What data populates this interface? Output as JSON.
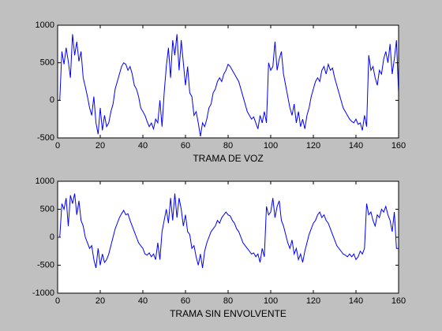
{
  "chart_data": [
    {
      "type": "line",
      "xlabel": "TRAMA DE VOZ",
      "x": [
        0,
        1,
        2,
        3,
        4,
        5,
        6,
        7,
        8,
        9,
        10,
        11,
        12,
        13,
        14,
        15,
        16,
        17,
        18,
        19,
        20,
        21,
        22,
        23,
        24,
        25,
        26,
        27,
        28,
        29,
        30,
        31,
        32,
        33,
        34,
        35,
        36,
        37,
        38,
        39,
        40,
        41,
        42,
        43,
        44,
        45,
        46,
        47,
        48,
        49,
        50,
        51,
        52,
        53,
        54,
        55,
        56,
        57,
        58,
        59,
        60,
        61,
        62,
        63,
        64,
        65,
        66,
        67,
        68,
        69,
        70,
        71,
        72,
        73,
        74,
        75,
        76,
        77,
        78,
        79,
        80,
        81,
        82,
        83,
        84,
        85,
        86,
        87,
        88,
        89,
        90,
        91,
        92,
        93,
        94,
        95,
        96,
        97,
        98,
        99,
        100,
        101,
        102,
        103,
        104,
        105,
        106,
        107,
        108,
        109,
        110,
        111,
        112,
        113,
        114,
        115,
        116,
        117,
        118,
        119,
        120,
        121,
        122,
        123,
        124,
        125,
        126,
        127,
        128,
        129,
        130,
        131,
        132,
        133,
        134,
        135,
        136,
        137,
        138,
        139,
        140,
        141,
        142,
        143,
        144,
        145,
        146,
        147,
        148,
        149,
        150,
        151,
        152,
        153,
        154,
        155,
        156,
        157,
        158,
        159,
        160
      ],
      "series": [
        {
          "color": "#0000ff",
          "values": [
            0,
            0,
            650,
            480,
            700,
            520,
            300,
            880,
            600,
            780,
            520,
            650,
            300,
            180,
            50,
            -100,
            -200,
            50,
            -300,
            -450,
            -100,
            -400,
            -200,
            -350,
            -300,
            -150,
            -50,
            150,
            250,
            350,
            450,
            500,
            480,
            400,
            450,
            350,
            200,
            150,
            50,
            -100,
            -150,
            -200,
            -280,
            -350,
            -300,
            -380,
            -250,
            -300,
            0,
            -350,
            100,
            450,
            700,
            300,
            800,
            600,
            880,
            400,
            800,
            500,
            200,
            450,
            100,
            50,
            -200,
            -150,
            -300,
            -480,
            -300,
            -350,
            -250,
            -100,
            -50,
            100,
            150,
            250,
            300,
            250,
            350,
            400,
            480,
            450,
            400,
            350,
            300,
            250,
            150,
            50,
            -50,
            -150,
            -200,
            -250,
            -220,
            -300,
            -380,
            -200,
            -300,
            -150,
            -300,
            500,
            400,
            450,
            780,
            400,
            550,
            650,
            350,
            200,
            50,
            -100,
            -200,
            -50,
            -300,
            -150,
            -350,
            -250,
            -380,
            -200,
            -100,
            50,
            150,
            250,
            300,
            250,
            400,
            450,
            350,
            480,
            400,
            430,
            300,
            200,
            100,
            0,
            -100,
            -150,
            -200,
            -250,
            -280,
            -300,
            -250,
            -320,
            -300,
            -400,
            -200,
            -350,
            600,
            400,
            450,
            300,
            200,
            400,
            350,
            550,
            650,
            500,
            750,
            350,
            550,
            800,
            100
          ]
        }
      ],
      "xlim": [
        0,
        160
      ],
      "ylim": [
        -500,
        1000
      ],
      "xticks": [
        0,
        20,
        40,
        60,
        80,
        100,
        120,
        140,
        160
      ],
      "yticks": [
        -500,
        0,
        500,
        1000
      ]
    },
    {
      "type": "line",
      "xlabel": "TRAMA SIN ENVOLVENTE",
      "x": [
        0,
        1,
        2,
        3,
        4,
        5,
        6,
        7,
        8,
        9,
        10,
        11,
        12,
        13,
        14,
        15,
        16,
        17,
        18,
        19,
        20,
        21,
        22,
        23,
        24,
        25,
        26,
        27,
        28,
        29,
        30,
        31,
        32,
        33,
        34,
        35,
        36,
        37,
        38,
        39,
        40,
        41,
        42,
        43,
        44,
        45,
        46,
        47,
        48,
        49,
        50,
        51,
        52,
        53,
        54,
        55,
        56,
        57,
        58,
        59,
        60,
        61,
        62,
        63,
        64,
        65,
        66,
        67,
        68,
        69,
        70,
        71,
        72,
        73,
        74,
        75,
        76,
        77,
        78,
        79,
        80,
        81,
        82,
        83,
        84,
        85,
        86,
        87,
        88,
        89,
        90,
        91,
        92,
        93,
        94,
        95,
        96,
        97,
        98,
        99,
        100,
        101,
        102,
        103,
        104,
        105,
        106,
        107,
        108,
        109,
        110,
        111,
        112,
        113,
        114,
        115,
        116,
        117,
        118,
        119,
        120,
        121,
        122,
        123,
        124,
        125,
        126,
        127,
        128,
        129,
        130,
        131,
        132,
        133,
        134,
        135,
        136,
        137,
        138,
        139,
        140,
        141,
        142,
        143,
        144,
        145,
        146,
        147,
        148,
        149,
        150,
        151,
        152,
        153,
        154,
        155,
        156,
        157,
        158,
        159,
        160
      ],
      "series": [
        {
          "color": "#0000ff",
          "values": [
            0,
            0,
            600,
            500,
            700,
            200,
            750,
            600,
            780,
            400,
            650,
            300,
            200,
            0,
            -100,
            -200,
            -150,
            -400,
            -550,
            -200,
            -500,
            -300,
            -450,
            -400,
            -300,
            -150,
            0,
            150,
            250,
            350,
            420,
            480,
            400,
            420,
            300,
            200,
            100,
            0,
            -100,
            -150,
            -200,
            -300,
            -320,
            -280,
            -350,
            -300,
            -400,
            -100,
            -400,
            100,
            300,
            500,
            250,
            700,
            300,
            780,
            350,
            700,
            500,
            200,
            400,
            100,
            50,
            -200,
            -150,
            -350,
            -500,
            -300,
            -550,
            -250,
            -100,
            0,
            100,
            150,
            200,
            300,
            250,
            350,
            400,
            450,
            400,
            380,
            300,
            250,
            150,
            100,
            0,
            -100,
            -150,
            -200,
            -250,
            -300,
            -280,
            -350,
            -300,
            -450,
            -200,
            -350,
            550,
            400,
            450,
            700,
            350,
            550,
            650,
            300,
            200,
            50,
            -100,
            -200,
            -50,
            -300,
            -200,
            -400,
            -300,
            -450,
            -250,
            -100,
            50,
            150,
            250,
            300,
            400,
            450,
            350,
            400,
            300,
            250,
            150,
            50,
            -50,
            -150,
            -200,
            -250,
            -300,
            -320,
            -350,
            -300,
            -350,
            -300,
            -400,
            -350,
            -250,
            -300,
            -200,
            600,
            400,
            450,
            300,
            200,
            400,
            350,
            500,
            450,
            550,
            400,
            300,
            100,
            450,
            -200,
            -200
          ]
        }
      ],
      "xlim": [
        0,
        160
      ],
      "ylim": [
        -1000,
        1000
      ],
      "xticks": [
        0,
        20,
        40,
        60,
        80,
        100,
        120,
        140,
        160
      ],
      "yticks": [
        -1000,
        -500,
        0,
        500,
        1000
      ]
    }
  ]
}
